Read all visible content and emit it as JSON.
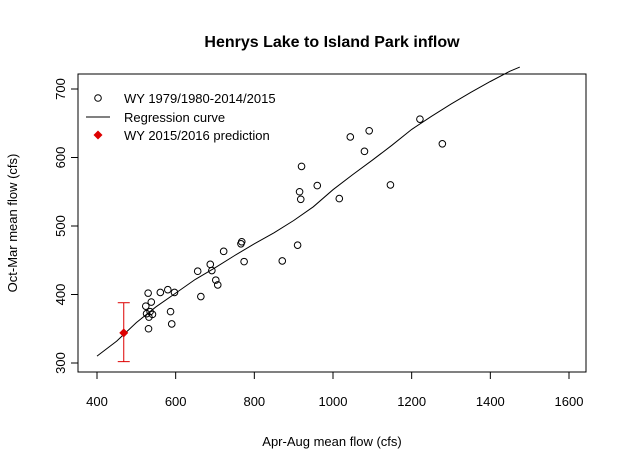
{
  "chart_data": {
    "type": "scatter",
    "title": "Henrys Lake to Island Park inflow",
    "xlabel": "Apr-Aug mean flow (cfs)",
    "ylabel": "Oct-Mar mean flow (cfs)",
    "xlim": [
      400,
      1600
    ],
    "ylim": [
      300,
      700
    ],
    "x_ticks": [
      "400",
      "600",
      "800",
      "1000",
      "1200",
      "1400",
      "1600"
    ],
    "y_ticks": [
      "300",
      "400",
      "500",
      "600",
      "700"
    ],
    "legend_position": "top-left",
    "legend": {
      "observed": "WY 1979/1980-2014/2015",
      "regression": "Regression curve",
      "prediction": "WY 2015/2016 prediction"
    },
    "series": [
      {
        "name": "WY 1979/1980-2014/2015",
        "marker": "open-circle",
        "color": "#000000",
        "points": [
          [
            524,
            383
          ],
          [
            526,
            372
          ],
          [
            530,
            402
          ],
          [
            531,
            350
          ],
          [
            532,
            367
          ],
          [
            535,
            375
          ],
          [
            538,
            389
          ],
          [
            541,
            371
          ],
          [
            561,
            403
          ],
          [
            580,
            407
          ],
          [
            587,
            375
          ],
          [
            590,
            357
          ],
          [
            597,
            403
          ],
          [
            656,
            434
          ],
          [
            664,
            397
          ],
          [
            688,
            444
          ],
          [
            692,
            435
          ],
          [
            702,
            421
          ],
          [
            707,
            414
          ],
          [
            722,
            463
          ],
          [
            766,
            474
          ],
          [
            768,
            477
          ],
          [
            774,
            448
          ],
          [
            871,
            449
          ],
          [
            910,
            472
          ],
          [
            915,
            550
          ],
          [
            918,
            539
          ],
          [
            920,
            587
          ],
          [
            960,
            559
          ],
          [
            1016,
            540
          ],
          [
            1044,
            630
          ],
          [
            1080,
            609
          ],
          [
            1092,
            639
          ],
          [
            1146,
            560
          ],
          [
            1221,
            656
          ],
          [
            1278,
            620
          ]
        ]
      },
      {
        "name": "Regression curve",
        "type": "line",
        "color": "#000000",
        "points": [
          [
            400,
            310
          ],
          [
            450,
            332
          ],
          [
            500,
            359
          ],
          [
            550,
            382
          ],
          [
            600,
            402
          ],
          [
            650,
            422
          ],
          [
            700,
            439
          ],
          [
            750,
            457
          ],
          [
            800,
            474
          ],
          [
            850,
            490
          ],
          [
            900,
            508
          ],
          [
            950,
            528
          ],
          [
            1000,
            553
          ],
          [
            1050,
            575
          ],
          [
            1100,
            596
          ],
          [
            1150,
            618
          ],
          [
            1200,
            641
          ],
          [
            1250,
            660
          ],
          [
            1300,
            678
          ],
          [
            1350,
            695
          ],
          [
            1400,
            711
          ],
          [
            1450,
            726
          ],
          [
            1475,
            732
          ]
        ]
      },
      {
        "name": "WY 2015/2016 prediction",
        "marker": "filled-diamond",
        "color": "#dd0000",
        "points": [
          [
            468,
            344
          ]
        ],
        "error_bar": {
          "low": 302,
          "high": 388
        }
      }
    ]
  }
}
